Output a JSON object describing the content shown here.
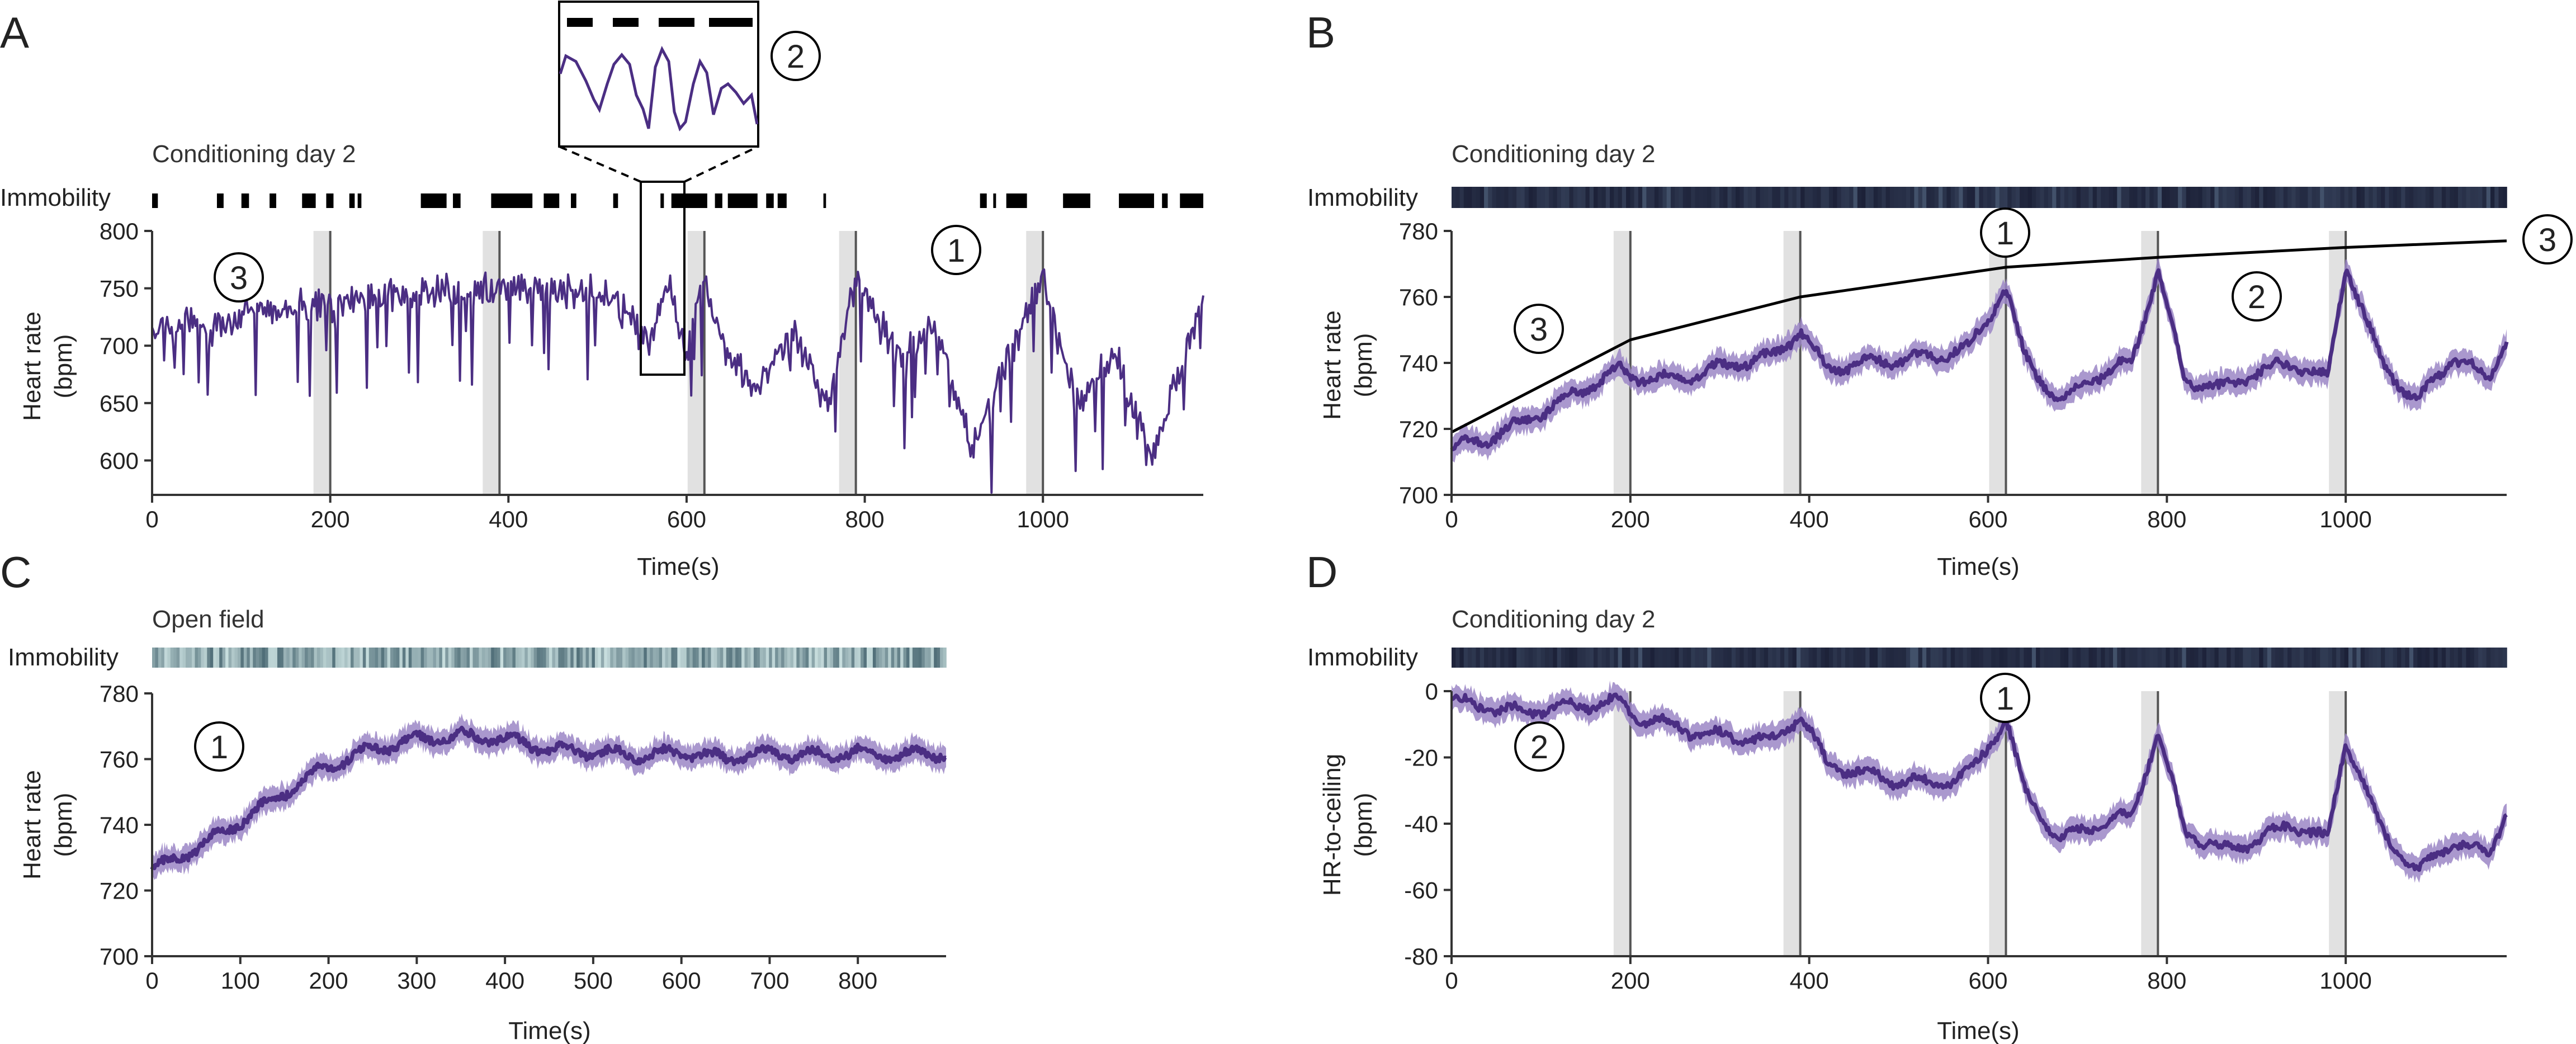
{
  "colors": {
    "trace": "#4b2e83",
    "band": "#9b86c6",
    "immobility_dark": "#1c2138",
    "immobility_light": "#b9d4d6",
    "stim_shade": "#d9d9d9",
    "stim_line": "#555555",
    "ceiling": "#000000"
  },
  "panels": [
    {
      "letter": "A",
      "title": "Conditioning day 2",
      "immobility_label": "Immobility",
      "ylabel_line1": "Heart rate",
      "ylabel_line2": "(bpm)",
      "xlabel": "Time(s)",
      "markers": [
        "1",
        "3"
      ],
      "inset_marker": "2"
    },
    {
      "letter": "B",
      "title": "Conditioning day 2",
      "immobility_label": "Immobility",
      "ylabel_line1": "Heart rate",
      "ylabel_line2": "(bpm)",
      "xlabel": "Time(s)",
      "markers": [
        "1",
        "2",
        "3",
        "3"
      ]
    },
    {
      "letter": "C",
      "title": "Open field",
      "immobility_label": "Immobility",
      "ylabel_line1": "Heart rate",
      "ylabel_line2": "(bpm)",
      "xlabel": "Time(s)",
      "markers": [
        "1"
      ]
    },
    {
      "letter": "D",
      "title": "Conditioning day 2",
      "immobility_label": "Immobility",
      "ylabel_line1": "HR-to-ceiling",
      "ylabel_line2": "(bpm)",
      "xlabel": "Time(s)",
      "markers": [
        "1",
        "2"
      ]
    }
  ],
  "chart_data": [
    {
      "panel": "A",
      "type": "line",
      "xlabel": "Time(s)",
      "ylabel": "Heart rate (bpm)",
      "xlim": [
        0,
        1180
      ],
      "ylim": [
        570,
        800
      ],
      "xticks": [
        0,
        200,
        400,
        600,
        800,
        1000
      ],
      "yticks": [
        600,
        650,
        700,
        750,
        800
      ],
      "stimuli": [
        200,
        390,
        620,
        790,
        1000
      ],
      "series": [
        {
          "style": "single-trial",
          "x": [
            0,
            60,
            120,
            180,
            200,
            260,
            320,
            390,
            440,
            480,
            520,
            560,
            580,
            600,
            620,
            640,
            680,
            720,
            760,
            790,
            840,
            880,
            920,
            960,
            1000,
            1040,
            1080,
            1120,
            1160,
            1180
          ],
          "y": [
            714,
            720,
            727,
            735,
            738,
            742,
            746,
            750,
            752,
            748,
            744,
            700,
            755,
            690,
            762,
            700,
            660,
            710,
            650,
            760,
            690,
            720,
            610,
            690,
            760,
            650,
            700,
            600,
            690,
            740
          ]
        }
      ]
    },
    {
      "panel": "B",
      "type": "line",
      "xlabel": "Time(s)",
      "ylabel": "Heart rate (bpm)",
      "xlim": [
        0,
        1180
      ],
      "ylim": [
        700,
        780
      ],
      "xticks": [
        0,
        200,
        400,
        600,
        800,
        1000
      ],
      "yticks": [
        700,
        720,
        740,
        760,
        780
      ],
      "stimuli": [
        200,
        390,
        620,
        790,
        1000
      ],
      "series": [
        {
          "style": "mean",
          "x": [
            0,
            40,
            80,
            120,
            160,
            190,
            200,
            240,
            280,
            320,
            360,
            390,
            420,
            460,
            500,
            540,
            580,
            620,
            640,
            680,
            720,
            760,
            790,
            820,
            860,
            900,
            940,
            980,
            1000,
            1040,
            1080,
            1120,
            1160,
            1180
          ],
          "y": [
            714,
            717,
            722,
            728,
            734,
            738,
            736,
            735,
            737,
            740,
            742,
            750,
            738,
            740,
            741,
            742,
            745,
            763,
            742,
            728,
            736,
            740,
            768,
            735,
            732,
            737,
            740,
            735,
            770,
            740,
            728,
            742,
            735,
            748
          ]
        },
        {
          "style": "ceiling",
          "x": [
            0,
            200,
            390,
            620,
            790,
            1000,
            1180
          ],
          "y": [
            719,
            747,
            760,
            769,
            772,
            775,
            777
          ]
        }
      ]
    },
    {
      "panel": "C",
      "type": "line",
      "xlabel": "Time(s)",
      "ylabel": "Heart rate (bpm)",
      "xlim": [
        0,
        900
      ],
      "ylim": [
        700,
        780
      ],
      "xticks": [
        0,
        100,
        200,
        300,
        400,
        500,
        600,
        700,
        800
      ],
      "yticks": [
        700,
        720,
        740,
        760,
        780
      ],
      "series": [
        {
          "style": "mean",
          "x": [
            0,
            50,
            100,
            150,
            200,
            250,
            300,
            350,
            400,
            450,
            500,
            550,
            600,
            650,
            700,
            750,
            800,
            850,
            900
          ],
          "y": [
            726,
            733,
            741,
            750,
            758,
            763,
            766,
            767,
            766,
            763,
            762,
            761,
            762,
            760,
            762,
            761,
            762,
            761,
            762
          ]
        }
      ]
    },
    {
      "panel": "D",
      "type": "line",
      "xlabel": "Time(s)",
      "ylabel": "HR-to-ceiling (bpm)",
      "xlim": [
        0,
        1180
      ],
      "ylim": [
        -80,
        0
      ],
      "xticks": [
        0,
        200,
        400,
        600,
        800,
        1000
      ],
      "yticks": [
        0,
        -20,
        -40,
        -60,
        -80
      ],
      "stimuli": [
        200,
        390,
        620,
        790,
        1000
      ],
      "series": [
        {
          "style": "mean",
          "x": [
            0,
            40,
            80,
            120,
            160,
            190,
            200,
            240,
            280,
            320,
            360,
            390,
            420,
            460,
            500,
            540,
            580,
            620,
            640,
            680,
            720,
            760,
            790,
            820,
            860,
            900,
            940,
            980,
            1000,
            1040,
            1080,
            1120,
            1160,
            1180
          ],
          "y": [
            -3,
            -5,
            -6,
            -5,
            -4,
            -3,
            -7,
            -10,
            -13,
            -14,
            -15,
            -7,
            -22,
            -25,
            -27,
            -28,
            -25,
            -8,
            -30,
            -45,
            -40,
            -38,
            -12,
            -42,
            -48,
            -45,
            -40,
            -45,
            -14,
            -42,
            -55,
            -45,
            -50,
            -35
          ]
        }
      ]
    }
  ]
}
